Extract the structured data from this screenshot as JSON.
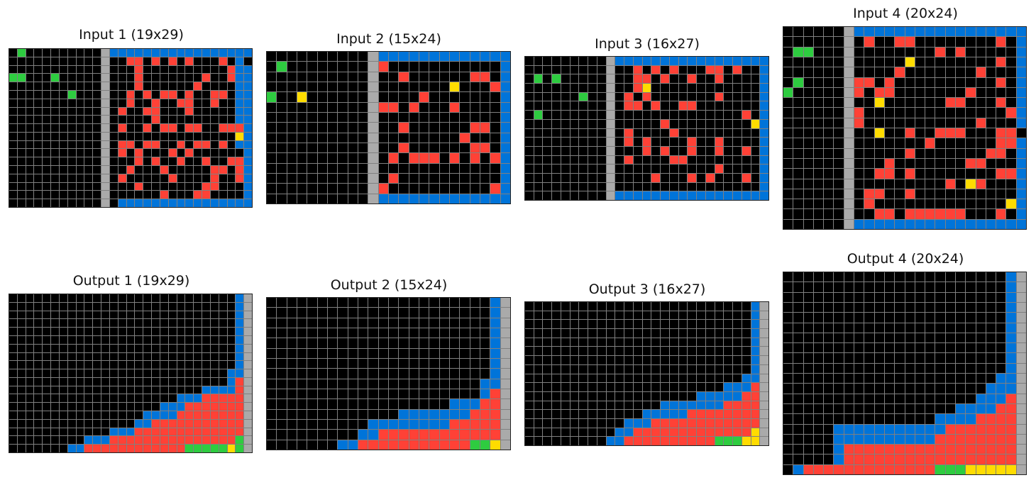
{
  "colors": {
    "0": "#000000",
    "1": "#0074D9",
    "2": "#FF4136",
    "3": "#2ECC40",
    "4": "#FFDC00",
    "5": "#AAAAAA"
  },
  "panels": [
    {
      "title": "Input 1 (19x29)",
      "rows": 19,
      "cols": 29,
      "grid": [
        "03000000000511111111111111111",
        "00000000000500220202020002010",
        "00000000000500020000000000211",
        "33000300000500020000000200211",
        "00000000000500020000002000011",
        "00000003000500202022020022011",
        "00000000000500200200220020011",
        "00000000000502002200020000011",
        "00000000000500000200000000011",
        "00000000000502002022022002221",
        "00000000000500000000000000041",
        "00000000000502202200202202011",
        "00000000000502020002020000001",
        "00000000000500020200200200221",
        "00000000000500200020000022021",
        "00000000000502000002000020021",
        "00000000000500020000000220001",
        "00000000000500000020002200001",
        "00000000000501111111111111111"
      ]
    },
    {
      "title": "Input 2 (15x24)",
      "rows": 15,
      "cols": 24,
      "grid": [
        "000000000051111111111111",
        "030000000052000000000001",
        "000000000050020000002201",
        "000000000050000000400021",
        "300400000050000200000001",
        "000000000052202000200001",
        "000000000050000000000001",
        "000000000050020000002201",
        "000000000050000000020001",
        "000000000050020000002201",
        "000000000050202220202021",
        "000000000050000000000001",
        "000000000050200000000001",
        "000000000052000000000021",
        "000000000051111111111111"
      ]
    },
    {
      "title": "Input 3 (16x27)",
      "rows": 16,
      "cols": 27,
      "grid": [
        "000000000511111111111111111",
        "000000000500202020002202001",
        "030300000500220200200200001",
        "000000000500240000000000001",
        "000000300502020000000200001",
        "000000000502202002200000001",
        "030000000500000000000000201",
        "000000000500000200000000041",
        "000000000502000020000000001",
        "000000000502020000200200001",
        "000000000500020200200200201",
        "000000000502000022000000001",
        "000000000500000000000200001",
        "000000000500002000202000201",
        "000000000500000000000000001",
        "000000000511111111111111111"
      ]
    },
    {
      "title": "Input 4 (20x24)",
      "rows": 20,
      "cols": 24,
      "grid": [
        "000000511111111111111111",
        "000000502002200000000201",
        "033000500000000202000001",
        "000000500000400000000201",
        "000000500002000000020001",
        "030000522020000000000201",
        "300000520220000000200001",
        "000000500400000022000201",
        "000000520000000000000021",
        "000000520000000000020001",
        "000000500400200222000220",
        "000000500000002000000221",
        "000000500000200000002201",
        "000000500020000000220001",
        "000000500220200000000221",
        "000000500000000020420001",
        "000000502200200000000001",
        "000000502000000000000041",
        "000000500220222222000201",
        "000000511111111111111111"
      ]
    },
    {
      "title": "Output 1 (19x29)",
      "rows": 19,
      "cols": 29,
      "grid": [
        "00000000000000000000000000015",
        "00000000000000000000000000015",
        "00000000000000000000000000015",
        "00000000000000000000000000015",
        "00000000000000000000000000015",
        "00000000000000000000000000015",
        "00000000000000000000000000015",
        "00000000000000000000000000015",
        "00000000000000000000000000015",
        "00000000000000000000000000115",
        "00000000000000000000000000125",
        "00000000000000000000000111125",
        "00000000000000000000111222225",
        "00000000000000000011122222225",
        "00000000000000001111222222225",
        "00000000000000011222222222225",
        "00000000000011122222222222225",
        "00000000011122222222222222235",
        "00000001122222222222233333435"
      ]
    },
    {
      "title": "Output 2 (15x24)",
      "rows": 15,
      "cols": 24,
      "grid": [
        "000000000000000000000015",
        "000000000000000000000015",
        "000000000000000000000015",
        "000000000000000000000015",
        "000000000000000000000015",
        "000000000000000000000015",
        "000000000000000000000015",
        "000000000000000000000015",
        "000000000000000000000115",
        "000000000000000000000125",
        "000000000000000000111225",
        "000000000000011111112225",
        "000000000011111111222225",
        "000000000112222222222225",
        "000000011222222222223345"
      ]
    },
    {
      "title": "Output 3 (16x27)",
      "rows": 16,
      "cols": 27,
      "grid": [
        "000000000000000000000000015",
        "000000000000000000000000015",
        "000000000000000000000000015",
        "000000000000000000000000015",
        "000000000000000000000000015",
        "000000000000000000000000015",
        "000000000000000000000000015",
        "000000000000000000000000015",
        "000000000000000000000000115",
        "000000000000000000000011125",
        "000000000000000000011111225",
        "000000000000000111111122225",
        "000000000000011111222222225",
        "000000000001112222222222225",
        "000000000011222222222222245",
        "000000000112222222222333445"
      ]
    },
    {
      "title": "Output 4 (20x24)",
      "rows": 20,
      "cols": 24,
      "grid": [
        "000000000000000000000015",
        "000000000000000000000015",
        "000000000000000000000015",
        "000000000000000000000015",
        "000000000000000000000015",
        "000000000000000000000015",
        "000000000000000000000015",
        "000000000000000000000015",
        "000000000000000000000015",
        "000000000000000000000015",
        "000000000000000000000115",
        "000000000000000000001115",
        "000000000000000000011125",
        "000000000000000001111225",
        "000000000000000111122225",
        "000001111111111122222225",
        "000001111111111222222225",
        "000001222222222222222225",
        "000001222222222222222225",
        "012222222222222333444445"
      ]
    }
  ]
}
